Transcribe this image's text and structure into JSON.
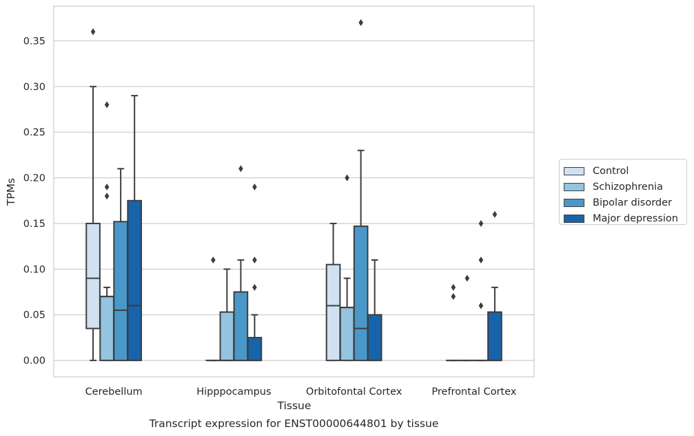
{
  "chart_data": {
    "type": "box",
    "title": "",
    "xlabel": "Tissue",
    "ylabel": "TPMs",
    "caption": "Transcript expression for ENST00000644801 by tissue",
    "ylim": [
      -0.018,
      0.388
    ],
    "yticks": [
      "0.00",
      "0.05",
      "0.10",
      "0.15",
      "0.20",
      "0.25",
      "0.30",
      "0.35"
    ],
    "grid": "horizontal",
    "legend_position": "right",
    "categories": [
      "Cerebellum",
      "Hipppocampus",
      "Orbitofontal Cortex",
      "Prefrontal Cortex"
    ],
    "series": [
      {
        "name": "Control",
        "color": "#d0e1f2",
        "boxes": [
          {
            "whislo": 0.0,
            "q1": 0.035,
            "med": 0.09,
            "q3": 0.15,
            "whishi": 0.3,
            "fliers": [
              0.36
            ]
          },
          {
            "whislo": 0.0,
            "q1": 0.0,
            "med": 0.0,
            "q3": 0.0,
            "whishi": 0.0,
            "fliers": [
              0.11
            ]
          },
          {
            "whislo": 0.0,
            "q1": 0.0,
            "med": 0.06,
            "q3": 0.105,
            "whishi": 0.15,
            "fliers": []
          },
          {
            "whislo": 0.0,
            "q1": 0.0,
            "med": 0.0,
            "q3": 0.0,
            "whishi": 0.0,
            "fliers": [
              0.07,
              0.08
            ]
          }
        ]
      },
      {
        "name": "Schizophrenia",
        "color": "#94c4df",
        "boxes": [
          {
            "whislo": 0.0,
            "q1": 0.0,
            "med": 0.07,
            "q3": 0.07,
            "whishi": 0.08,
            "fliers": [
              0.18,
              0.19,
              0.28
            ]
          },
          {
            "whislo": 0.0,
            "q1": 0.0,
            "med": 0.0,
            "q3": 0.053,
            "whishi": 0.1,
            "fliers": []
          },
          {
            "whislo": 0.0,
            "q1": 0.0,
            "med": 0.058,
            "q3": 0.058,
            "whishi": 0.09,
            "fliers": [
              0.2
            ]
          },
          {
            "whislo": 0.0,
            "q1": 0.0,
            "med": 0.0,
            "q3": 0.0,
            "whishi": 0.0,
            "fliers": [
              0.09
            ]
          }
        ]
      },
      {
        "name": "Bipolar disorder",
        "color": "#4a98c9",
        "boxes": [
          {
            "whislo": 0.0,
            "q1": 0.0,
            "med": 0.055,
            "q3": 0.152,
            "whishi": 0.21,
            "fliers": []
          },
          {
            "whislo": 0.0,
            "q1": 0.0,
            "med": 0.0,
            "q3": 0.075,
            "whishi": 0.11,
            "fliers": [
              0.21
            ]
          },
          {
            "whislo": 0.0,
            "q1": 0.0,
            "med": 0.035,
            "q3": 0.147,
            "whishi": 0.23,
            "fliers": [
              0.37
            ]
          },
          {
            "whislo": 0.0,
            "q1": 0.0,
            "med": 0.0,
            "q3": 0.0,
            "whishi": 0.0,
            "fliers": [
              0.06,
              0.11,
              0.15
            ]
          }
        ]
      },
      {
        "name": "Major depression",
        "color": "#1764ab",
        "boxes": [
          {
            "whislo": 0.0,
            "q1": 0.0,
            "med": 0.06,
            "q3": 0.175,
            "whishi": 0.29,
            "fliers": []
          },
          {
            "whislo": 0.0,
            "q1": 0.0,
            "med": 0.0,
            "q3": 0.025,
            "whishi": 0.05,
            "fliers": [
              0.08,
              0.11,
              0.19
            ]
          },
          {
            "whislo": 0.0,
            "q1": 0.0,
            "med": 0.0,
            "q3": 0.05,
            "whishi": 0.11,
            "fliers": []
          },
          {
            "whislo": 0.0,
            "q1": 0.0,
            "med": 0.0,
            "q3": 0.053,
            "whishi": 0.08,
            "fliers": [
              0.16
            ]
          }
        ]
      }
    ]
  }
}
